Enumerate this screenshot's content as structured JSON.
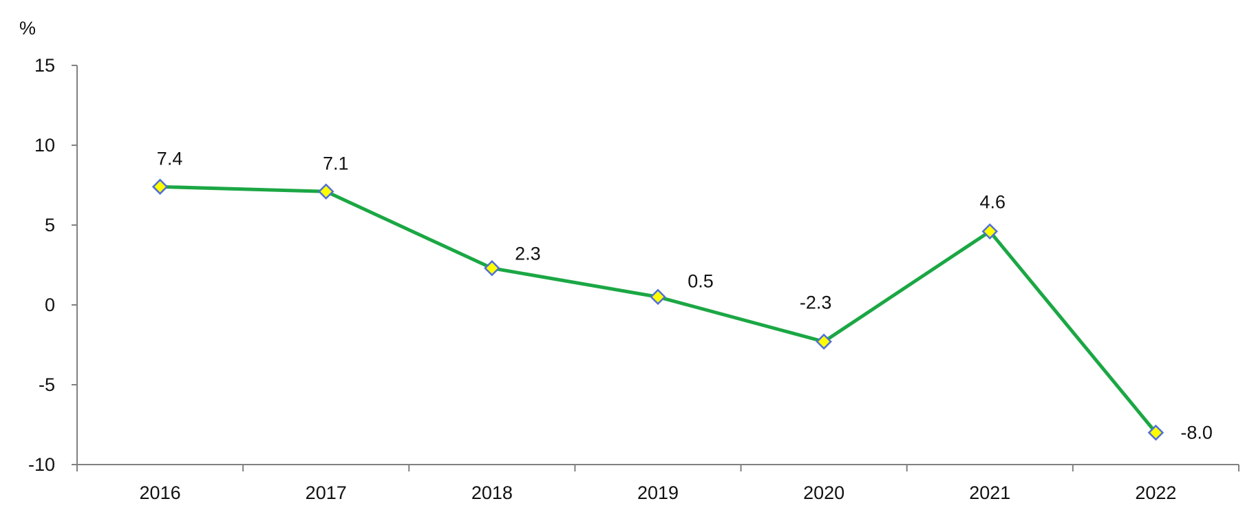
{
  "chart_data": {
    "type": "line",
    "categories": [
      "2016",
      "2017",
      "2018",
      "2019",
      "2020",
      "2021",
      "2022"
    ],
    "values": [
      7.4,
      7.1,
      2.3,
      0.5,
      -2.3,
      4.6,
      -8.0
    ],
    "data_labels": [
      "7.4",
      "7.1",
      "2.3",
      "0.5",
      "-2.3",
      "4.6",
      "-8.0"
    ],
    "ylabel": "%",
    "ylim": [
      -10,
      15
    ],
    "yticks": [
      15,
      10,
      5,
      0,
      -5,
      -10
    ],
    "ytick_labels": [
      "15",
      "10",
      "5",
      "0",
      "-5",
      "-10"
    ],
    "grid": false,
    "line_color": "#1BA744",
    "marker_fill": "#FFFF00",
    "marker_stroke": "#4F6FD8",
    "axis_color": "#808080"
  }
}
